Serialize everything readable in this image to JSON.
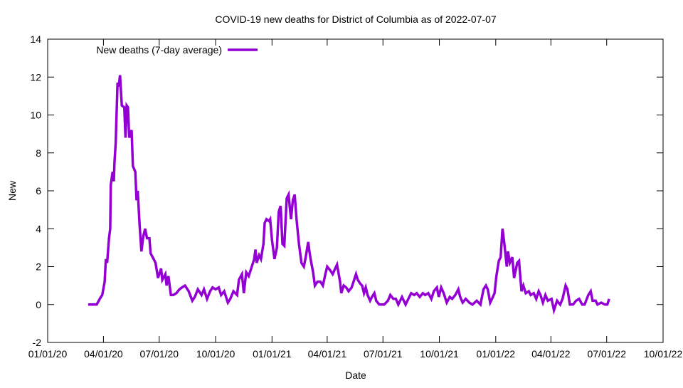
{
  "chart_data": {
    "type": "line",
    "title": "COVID-19 new deaths for District of Columbia as of 2022-07-07",
    "xlabel": "Date",
    "ylabel": "New",
    "x_units": "days since 01/01/20",
    "xlim": [
      0,
      1004
    ],
    "ylim": [
      -2,
      14
    ],
    "yticks": [
      -2,
      0,
      2,
      4,
      6,
      8,
      10,
      12,
      14
    ],
    "xticks": [
      {
        "label": "01/01/20",
        "day": 0
      },
      {
        "label": "04/01/20",
        "day": 91
      },
      {
        "label": "07/01/20",
        "day": 182
      },
      {
        "label": "10/01/20",
        "day": 274
      },
      {
        "label": "01/01/21",
        "day": 366
      },
      {
        "label": "04/01/21",
        "day": 456
      },
      {
        "label": "07/01/21",
        "day": 547
      },
      {
        "label": "10/01/21",
        "day": 639
      },
      {
        "label": "01/01/22",
        "day": 731
      },
      {
        "label": "04/01/22",
        "day": 821
      },
      {
        "label": "07/01/22",
        "day": 912
      },
      {
        "label": "10/01/22",
        "day": 1004
      }
    ],
    "grid": false,
    "legend_position": "top-left",
    "series": [
      {
        "name": "New deaths (7-day average)",
        "color": "#9400d3",
        "x": [
          66,
          80,
          85,
          89,
          93,
          95,
          97,
          100,
          102,
          103,
          106,
          108,
          109,
          111,
          114,
          116,
          118,
          121,
          125,
          127,
          129,
          131,
          133,
          137,
          139,
          143,
          145,
          147,
          150,
          153,
          156,
          159,
          162,
          166,
          168,
          173,
          176,
          180,
          185,
          187,
          192,
          194,
          197,
          201,
          205,
          210,
          215,
          219,
          224,
          230,
          236,
          240,
          245,
          251,
          255,
          260,
          265,
          269,
          274,
          279,
          283,
          288,
          294,
          298,
          303,
          309,
          312,
          317,
          320,
          324,
          328,
          333,
          337,
          339,
          341,
          345,
          348,
          352,
          354,
          357,
          361,
          363,
          366,
          370,
          374,
          377,
          380,
          383,
          386,
          390,
          393,
          397,
          400,
          403,
          406,
          410,
          414,
          418,
          421,
          425,
          427,
          429,
          433,
          436,
          440,
          445,
          449,
          453,
          456,
          461,
          465,
          469,
          472,
          477,
          479,
          483,
          487,
          491,
          496,
          499,
          503,
          506,
          510,
          513,
          516,
          519,
          522,
          526,
          529,
          533,
          536,
          541,
          549,
          555,
          559,
          564,
          568,
          572,
          578,
          584,
          587,
          593,
          598,
          602,
          607,
          612,
          616,
          621,
          626,
          630,
          635,
          638,
          642,
          646,
          651,
          656,
          660,
          665,
          670,
          673,
          677,
          682,
          688,
          693,
          700,
          706,
          711,
          715,
          718,
          722,
          725,
          729,
          732,
          736,
          739,
          742,
          745,
          749,
          751,
          754,
          758,
          761,
          766,
          769,
          773,
          776,
          780,
          785,
          788,
          793,
          797,
          801,
          804,
          808,
          812,
          816,
          822,
          826,
          831,
          836,
          840,
          845,
          848,
          852,
          857,
          862,
          867,
          872,
          876,
          882,
          886,
          889,
          894,
          897,
          903,
          909,
          913,
          916
        ],
        "y": [
          0,
          0,
          0.3,
          0.5,
          1.2,
          2.4,
          2.2,
          3.5,
          4,
          6.3,
          7,
          6.5,
          7.5,
          8.5,
          11.7,
          11.5,
          12.1,
          10.5,
          10.4,
          8.8,
          10.5,
          10.4,
          8.8,
          9.2,
          7.3,
          7,
          5.5,
          6,
          4.2,
          2.8,
          3.6,
          4,
          3.5,
          3.5,
          2.7,
          2.4,
          2.2,
          1.4,
          1.9,
          1.3,
          1.6,
          1.0,
          1.5,
          0.5,
          0.5,
          0.6,
          0.8,
          0.9,
          1.0,
          0.7,
          0.2,
          0.4,
          0.8,
          0.5,
          0.8,
          0.3,
          0.7,
          0.9,
          0.8,
          0.9,
          0.5,
          0.7,
          0.1,
          0.3,
          0.7,
          0.5,
          1.3,
          1.6,
          0.6,
          1.7,
          1.5,
          2.0,
          2.4,
          2.9,
          2.2,
          2.6,
          2.4,
          3.2,
          4.3,
          4.5,
          4.4,
          4.5,
          3.4,
          2.4,
          3.0,
          4.9,
          5.2,
          3.2,
          3.1,
          5.6,
          5.8,
          4.5,
          5.5,
          5.8,
          4.5,
          3.2,
          2.2,
          2.0,
          2.5,
          3.3,
          2.8,
          2.4,
          1.7,
          1.0,
          1.2,
          1.2,
          1.0,
          1.6,
          2.0,
          1.8,
          1.6,
          1.9,
          2.1,
          1.2,
          0.6,
          1.0,
          0.9,
          0.7,
          0.9,
          1.2,
          1.6,
          1.3,
          1.1,
          1.0,
          0.6,
          0.9,
          0.5,
          0.2,
          0.4,
          0.6,
          0.2,
          0,
          0,
          0.2,
          0.5,
          0.3,
          0.3,
          0.0,
          0.4,
          0.0,
          0.2,
          0.6,
          0.5,
          0.6,
          0.4,
          0.6,
          0.5,
          0.6,
          0.3,
          0.7,
          0.9,
          0.4,
          0.9,
          0.6,
          0.1,
          0.4,
          0.3,
          0.5,
          0.8,
          0.4,
          0.1,
          0.3,
          0.1,
          0.0,
          0.2,
          0.0,
          0.8,
          1.0,
          0.8,
          0.1,
          0.3,
          0.6,
          1.5,
          2.3,
          2.5,
          4.0,
          3.2,
          2.0,
          2.8,
          2.2,
          2.5,
          1.4,
          2.2,
          2.3,
          0.7,
          1.0,
          0.6,
          0.7,
          0.5,
          0.6,
          0.3,
          0.7,
          0.5,
          0.1,
          0.5,
          0.2,
          0.3,
          -0.3,
          0.2,
          0.0,
          0.3,
          1.0,
          0.8,
          0.0,
          0.0,
          0.2,
          0.3,
          0.0,
          0.0,
          0.5,
          0.7,
          0.2,
          0.2,
          0.0,
          0.1,
          0.0,
          0.0,
          0.3
        ]
      }
    ]
  }
}
